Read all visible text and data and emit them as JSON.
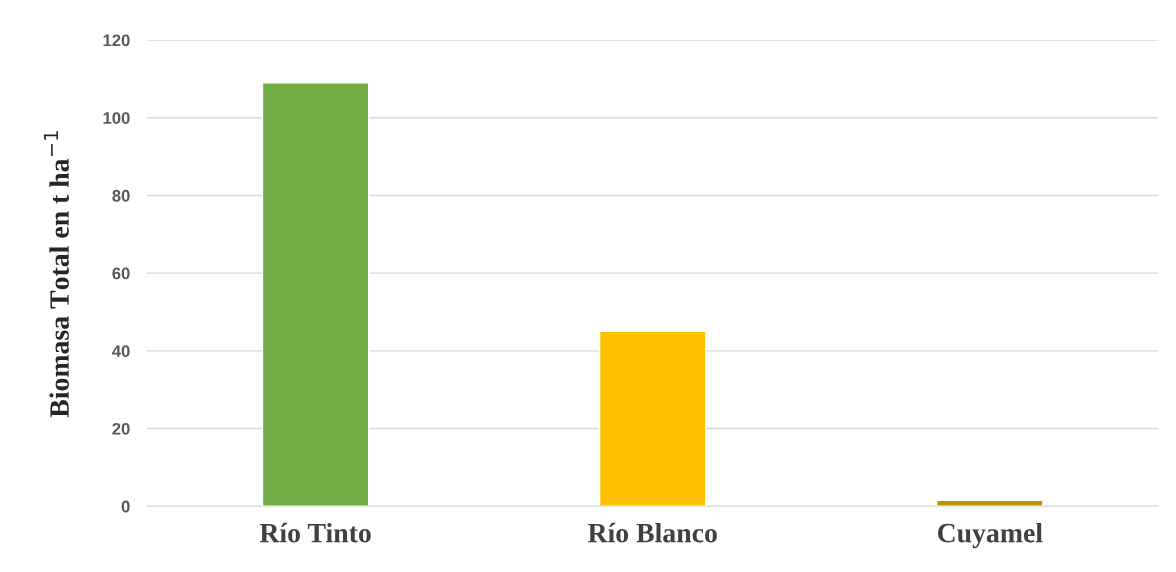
{
  "chart_data": {
    "type": "bar",
    "ylabel": "Biomasa Total en t ha$^{−1}$",
    "categories": [
      "Río Tinto",
      "Río Blanco",
      "Cuyamel"
    ],
    "values": [
      109,
      45,
      1.5
    ],
    "colors": [
      "#70ad47",
      "#ffc000",
      "#bf9000"
    ],
    "ylim": [
      0,
      120
    ],
    "yticks": [
      0,
      20,
      40,
      60,
      80,
      100,
      120
    ],
    "grid": "y"
  }
}
